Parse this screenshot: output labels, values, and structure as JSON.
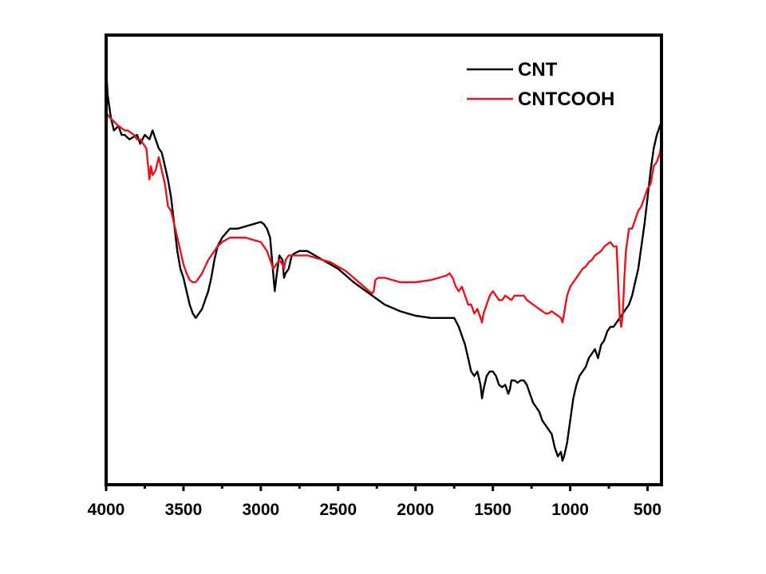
{
  "chart_data": {
    "type": "line",
    "title": "",
    "xlabel": "",
    "ylabel": "",
    "x_reversed": true,
    "xlim": [
      4000,
      410
    ],
    "ylim": [
      0,
      100
    ],
    "y_ticks_labeled": false,
    "x_ticks": [
      4000,
      3500,
      3000,
      2500,
      2000,
      1500,
      1000,
      500
    ],
    "x_tick_labels": [
      "4000",
      "3500",
      "3000",
      "2500",
      "2000",
      "1500",
      "1000",
      "500"
    ],
    "legend_position": "top-right",
    "series": [
      {
        "name": "CNT",
        "color": "#000000",
        "points": [
          [
            4000,
            93
          ],
          [
            3990,
            87
          ],
          [
            3970,
            82
          ],
          [
            3950,
            79
          ],
          [
            3920,
            80
          ],
          [
            3900,
            78
          ],
          [
            3880,
            78
          ],
          [
            3850,
            77
          ],
          [
            3800,
            78
          ],
          [
            3780,
            76
          ],
          [
            3750,
            78
          ],
          [
            3720,
            77
          ],
          [
            3700,
            79
          ],
          [
            3680,
            77
          ],
          [
            3660,
            75
          ],
          [
            3640,
            74
          ],
          [
            3620,
            71
          ],
          [
            3600,
            68
          ],
          [
            3580,
            64
          ],
          [
            3560,
            58
          ],
          [
            3540,
            52
          ],
          [
            3520,
            48
          ],
          [
            3500,
            46
          ],
          [
            3480,
            43
          ],
          [
            3460,
            40
          ],
          [
            3440,
            38
          ],
          [
            3420,
            37
          ],
          [
            3400,
            38
          ],
          [
            3380,
            39
          ],
          [
            3360,
            41
          ],
          [
            3340,
            43
          ],
          [
            3320,
            46
          ],
          [
            3300,
            50
          ],
          [
            3280,
            53
          ],
          [
            3250,
            55
          ],
          [
            3200,
            57
          ],
          [
            3150,
            57
          ],
          [
            3100,
            57.5
          ],
          [
            3050,
            58
          ],
          [
            3000,
            58.5
          ],
          [
            2980,
            58
          ],
          [
            2960,
            57
          ],
          [
            2940,
            55
          ],
          [
            2920,
            47
          ],
          [
            2910,
            43
          ],
          [
            2900,
            46
          ],
          [
            2880,
            51
          ],
          [
            2860,
            50
          ],
          [
            2850,
            46
          ],
          [
            2840,
            47
          ],
          [
            2820,
            48
          ],
          [
            2800,
            51
          ],
          [
            2780,
            51.5
          ],
          [
            2750,
            52
          ],
          [
            2700,
            52
          ],
          [
            2650,
            51
          ],
          [
            2600,
            50
          ],
          [
            2550,
            49
          ],
          [
            2500,
            48
          ],
          [
            2400,
            45
          ],
          [
            2300,
            42.5
          ],
          [
            2200,
            40
          ],
          [
            2100,
            38.5
          ],
          [
            2000,
            37.5
          ],
          [
            1900,
            37
          ],
          [
            1800,
            37
          ],
          [
            1750,
            37
          ],
          [
            1720,
            35
          ],
          [
            1700,
            33
          ],
          [
            1680,
            31
          ],
          [
            1660,
            28
          ],
          [
            1640,
            25
          ],
          [
            1620,
            24
          ],
          [
            1600,
            25
          ],
          [
            1580,
            22
          ],
          [
            1570,
            19
          ],
          [
            1560,
            21
          ],
          [
            1540,
            24
          ],
          [
            1520,
            25
          ],
          [
            1500,
            25
          ],
          [
            1480,
            24
          ],
          [
            1460,
            22
          ],
          [
            1440,
            21.5
          ],
          [
            1420,
            22
          ],
          [
            1400,
            20
          ],
          [
            1390,
            21
          ],
          [
            1380,
            23
          ],
          [
            1360,
            23
          ],
          [
            1340,
            22.5
          ],
          [
            1320,
            23
          ],
          [
            1300,
            23
          ],
          [
            1280,
            22
          ],
          [
            1260,
            20
          ],
          [
            1240,
            18
          ],
          [
            1220,
            17
          ],
          [
            1200,
            16
          ],
          [
            1180,
            14
          ],
          [
            1160,
            13
          ],
          [
            1140,
            12
          ],
          [
            1120,
            11
          ],
          [
            1100,
            8
          ],
          [
            1080,
            6
          ],
          [
            1060,
            7
          ],
          [
            1050,
            5
          ],
          [
            1040,
            6
          ],
          [
            1020,
            9
          ],
          [
            1000,
            14
          ],
          [
            980,
            19
          ],
          [
            960,
            22
          ],
          [
            940,
            24
          ],
          [
            920,
            25
          ],
          [
            900,
            26
          ],
          [
            880,
            28
          ],
          [
            860,
            29
          ],
          [
            840,
            30
          ],
          [
            820,
            28
          ],
          [
            800,
            31
          ],
          [
            780,
            32
          ],
          [
            760,
            34
          ],
          [
            740,
            35
          ],
          [
            720,
            35
          ],
          [
            700,
            36
          ],
          [
            680,
            37
          ],
          [
            660,
            38
          ],
          [
            640,
            39
          ],
          [
            620,
            40
          ],
          [
            600,
            42
          ],
          [
            580,
            45
          ],
          [
            560,
            48
          ],
          [
            540,
            53
          ],
          [
            520,
            58
          ],
          [
            500,
            64
          ],
          [
            480,
            70
          ],
          [
            460,
            75
          ],
          [
            440,
            78
          ],
          [
            420,
            80
          ],
          [
            410,
            81
          ]
        ]
      },
      {
        "name": "CNTCOOH",
        "color": "#e8131a",
        "points": [
          [
            4000,
            83
          ],
          [
            3980,
            82
          ],
          [
            3950,
            81
          ],
          [
            3920,
            80
          ],
          [
            3900,
            79.5
          ],
          [
            3880,
            79
          ],
          [
            3860,
            79
          ],
          [
            3840,
            78.5
          ],
          [
            3820,
            78
          ],
          [
            3800,
            77
          ],
          [
            3780,
            77
          ],
          [
            3760,
            76
          ],
          [
            3740,
            75
          ],
          [
            3720,
            68
          ],
          [
            3710,
            71
          ],
          [
            3700,
            69
          ],
          [
            3680,
            70
          ],
          [
            3660,
            73
          ],
          [
            3640,
            70
          ],
          [
            3620,
            67
          ],
          [
            3600,
            62
          ],
          [
            3580,
            61
          ],
          [
            3560,
            58
          ],
          [
            3540,
            55
          ],
          [
            3520,
            52
          ],
          [
            3500,
            49
          ],
          [
            3480,
            47
          ],
          [
            3460,
            45.5
          ],
          [
            3440,
            45
          ],
          [
            3420,
            45
          ],
          [
            3400,
            46
          ],
          [
            3380,
            47
          ],
          [
            3360,
            48.5
          ],
          [
            3340,
            50
          ],
          [
            3320,
            51
          ],
          [
            3300,
            52
          ],
          [
            3280,
            53
          ],
          [
            3250,
            54
          ],
          [
            3200,
            55
          ],
          [
            3150,
            55
          ],
          [
            3100,
            55
          ],
          [
            3050,
            54.5
          ],
          [
            3000,
            54
          ],
          [
            2980,
            53
          ],
          [
            2960,
            52
          ],
          [
            2940,
            50
          ],
          [
            2920,
            48
          ],
          [
            2900,
            49
          ],
          [
            2880,
            50
          ],
          [
            2860,
            49
          ],
          [
            2850,
            48
          ],
          [
            2840,
            50
          ],
          [
            2820,
            51
          ],
          [
            2800,
            51
          ],
          [
            2750,
            51
          ],
          [
            2700,
            51
          ],
          [
            2650,
            50.5
          ],
          [
            2600,
            50
          ],
          [
            2550,
            49.5
          ],
          [
            2500,
            48.5
          ],
          [
            2450,
            47.5
          ],
          [
            2400,
            46
          ],
          [
            2350,
            44.5
          ],
          [
            2300,
            43
          ],
          [
            2280,
            42.5
          ],
          [
            2270,
            43
          ],
          [
            2260,
            45.5
          ],
          [
            2240,
            46
          ],
          [
            2200,
            46
          ],
          [
            2100,
            45
          ],
          [
            2000,
            45
          ],
          [
            1900,
            45.5
          ],
          [
            1850,
            46
          ],
          [
            1800,
            46.5
          ],
          [
            1780,
            47
          ],
          [
            1760,
            46
          ],
          [
            1740,
            44
          ],
          [
            1720,
            43
          ],
          [
            1700,
            44
          ],
          [
            1680,
            42
          ],
          [
            1660,
            40
          ],
          [
            1640,
            40
          ],
          [
            1620,
            38
          ],
          [
            1600,
            39
          ],
          [
            1580,
            37
          ],
          [
            1570,
            36
          ],
          [
            1560,
            38
          ],
          [
            1540,
            40
          ],
          [
            1520,
            42
          ],
          [
            1500,
            43
          ],
          [
            1480,
            42
          ],
          [
            1460,
            41
          ],
          [
            1440,
            41
          ],
          [
            1420,
            42
          ],
          [
            1400,
            41.5
          ],
          [
            1380,
            41
          ],
          [
            1360,
            42
          ],
          [
            1340,
            42
          ],
          [
            1320,
            42
          ],
          [
            1300,
            42
          ],
          [
            1280,
            41
          ],
          [
            1260,
            40.5
          ],
          [
            1240,
            40
          ],
          [
            1220,
            39.5
          ],
          [
            1200,
            39
          ],
          [
            1180,
            38.5
          ],
          [
            1160,
            38
          ],
          [
            1140,
            38
          ],
          [
            1120,
            38.5
          ],
          [
            1100,
            38
          ],
          [
            1080,
            37.5
          ],
          [
            1060,
            37
          ],
          [
            1050,
            36
          ],
          [
            1040,
            38
          ],
          [
            1020,
            42
          ],
          [
            1000,
            44
          ],
          [
            980,
            45
          ],
          [
            960,
            46
          ],
          [
            940,
            47
          ],
          [
            920,
            48
          ],
          [
            900,
            48.5
          ],
          [
            880,
            49.5
          ],
          [
            860,
            50
          ],
          [
            840,
            51
          ],
          [
            820,
            51.5
          ],
          [
            800,
            52
          ],
          [
            780,
            53
          ],
          [
            760,
            53.5
          ],
          [
            740,
            54
          ],
          [
            720,
            53
          ],
          [
            700,
            53
          ],
          [
            690,
            45
          ],
          [
            680,
            37
          ],
          [
            670,
            35
          ],
          [
            660,
            38
          ],
          [
            650,
            46
          ],
          [
            640,
            52
          ],
          [
            620,
            57
          ],
          [
            600,
            57
          ],
          [
            580,
            59
          ],
          [
            560,
            61
          ],
          [
            540,
            62
          ],
          [
            520,
            64
          ],
          [
            500,
            66
          ],
          [
            480,
            67
          ],
          [
            460,
            71
          ],
          [
            440,
            72
          ],
          [
            420,
            74
          ],
          [
            410,
            76
          ]
        ]
      }
    ]
  }
}
